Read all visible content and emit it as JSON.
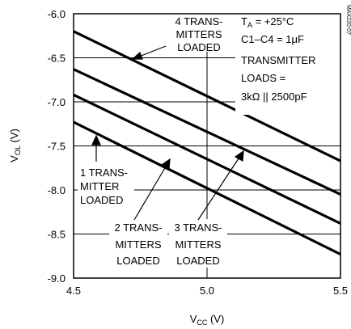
{
  "chart_data": {
    "type": "line",
    "title": "",
    "xlabel": "V",
    "xlabel_sub": "CC",
    "xlabel_unit": " (V)",
    "ylabel": "V",
    "ylabel_sub": "OL",
    "ylabel_unit": " (V)",
    "xlim": [
      4.5,
      5.5
    ],
    "ylim": [
      -9.0,
      -6.0
    ],
    "x_ticks": [
      {
        "value": 4.5,
        "label": "4.5"
      },
      {
        "value": 5.0,
        "label": "5.0"
      },
      {
        "value": 5.5,
        "label": "5.5"
      }
    ],
    "y_ticks": [
      {
        "value": -6.0,
        "label": "-6.0"
      },
      {
        "value": -6.5,
        "label": "-6.5"
      },
      {
        "value": -7.0,
        "label": "-7.0"
      },
      {
        "value": -7.5,
        "label": "-7.5"
      },
      {
        "value": -8.0,
        "label": "-8.0"
      },
      {
        "value": -8.5,
        "label": "-8.5"
      },
      {
        "value": -9.0,
        "label": "-9.0"
      }
    ],
    "grid": true,
    "series": [
      {
        "x": [
          4.5,
          5.5
        ],
        "y": [
          -6.2,
          -7.67
        ]
      },
      {
        "x": [
          4.5,
          5.5
        ],
        "y": [
          -6.63,
          -8.05
        ]
      },
      {
        "x": [
          4.5,
          5.5
        ],
        "y": [
          -6.92,
          -8.38
        ]
      },
      {
        "x": [
          4.5,
          5.5
        ],
        "y": [
          -7.23,
          -8.73
        ]
      }
    ],
    "annotations": [
      {
        "lines": [
          "4 TRANS-",
          "MITTERS",
          "LOADED"
        ]
      },
      {
        "lines": [
          "1 TRANS-",
          "MITTER",
          "LOADED"
        ]
      },
      {
        "lines": [
          "2 TRANS-",
          "MITTERS",
          "LOADED"
        ]
      },
      {
        "lines": [
          "3 TRANS-",
          "MITTERS",
          "LOADED"
        ]
      }
    ],
    "conditions": {
      "ta_symbol": "T",
      "ta_sub": "A",
      "ta_value": " = +25°C",
      "lines": [
        "C1–C4 = 1μF",
        "TRANSMITTER",
        "LOADS =",
        "3kΩ || 2500pF"
      ]
    },
    "part_code": "MAX220-07"
  }
}
